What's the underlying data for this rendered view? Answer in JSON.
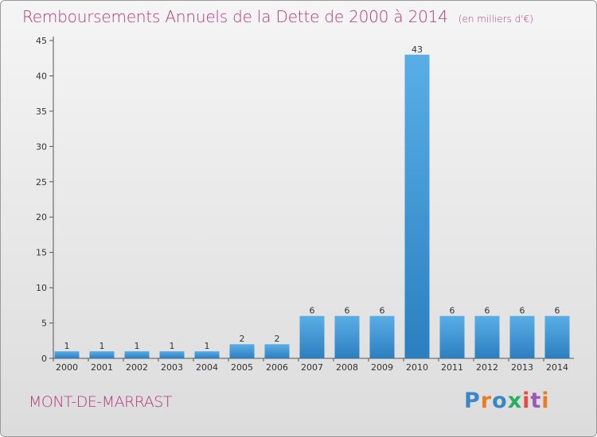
{
  "header": {
    "title": "Remboursements Annuels de la Dette de 2000 à 2014",
    "unit": "(en milliers d'€)"
  },
  "footer": {
    "commune": "MONT-DE-MARRAST",
    "logo_letters": [
      "P",
      "r",
      "o",
      "x",
      "i",
      "t",
      "i"
    ]
  },
  "colors": {
    "title": "#b4387c",
    "bar_top": "#5aaee6",
    "bar_bottom": "#2b7fc0"
  },
  "chart_data": {
    "type": "bar",
    "title": "Remboursements Annuels de la Dette de 2000 à 2014",
    "categories": [
      "2000",
      "2001",
      "2002",
      "2003",
      "2004",
      "2005",
      "2006",
      "2007",
      "2008",
      "2009",
      "2010",
      "2011",
      "2012",
      "2013",
      "2014"
    ],
    "values": [
      1,
      1,
      1,
      1,
      1,
      2,
      2,
      6,
      6,
      6,
      43,
      6,
      6,
      6,
      6
    ],
    "ylim": [
      0,
      45
    ],
    "yticks": [
      0,
      5,
      10,
      15,
      20,
      25,
      30,
      35,
      40,
      45
    ],
    "xlabel": "",
    "ylabel": "",
    "grid": false,
    "data_labels": true
  }
}
